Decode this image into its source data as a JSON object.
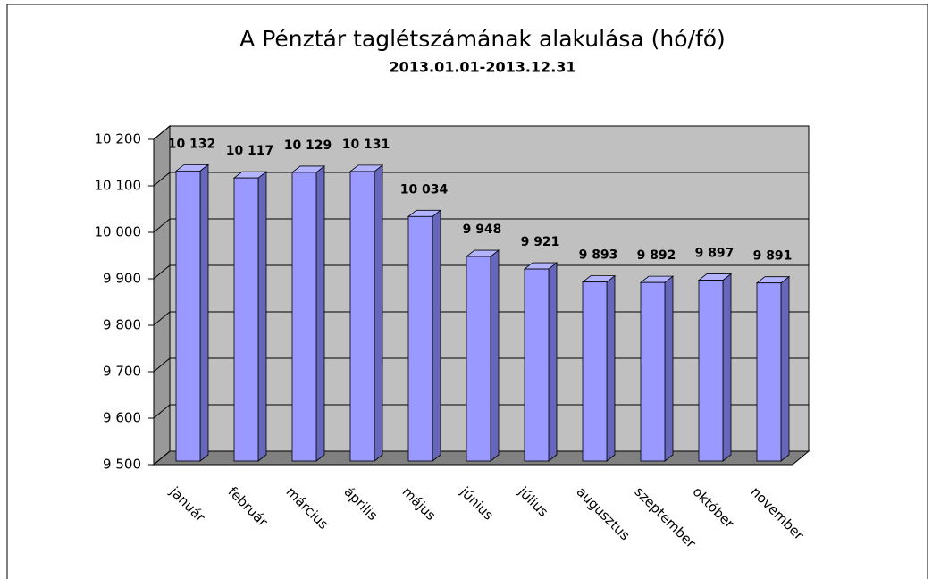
{
  "chart_data": {
    "type": "bar3d",
    "title": "A Pénztár taglétszámának alakulása (hó/fő)",
    "subtitle": "2013.01.01-2013.12.31",
    "categories": [
      "január",
      "február",
      "március",
      "április",
      "május",
      "június",
      "július",
      "augusztus",
      "szeptember",
      "október",
      "november"
    ],
    "values": [
      10132,
      10117,
      10129,
      10131,
      10034,
      9948,
      9921,
      9893,
      9892,
      9897,
      9891
    ],
    "value_labels": [
      "10 132",
      "10 117",
      "10 129",
      "10 131",
      "10 034",
      "9 948",
      "9 921",
      "9 893",
      "9 892",
      "9 897",
      "9 891"
    ],
    "color": "#9999ff",
    "ylim": [
      9500,
      10200
    ],
    "yticks": [
      {
        "value": 9500,
        "label": "9 500"
      },
      {
        "value": 9600,
        "label": "9 600"
      },
      {
        "value": 9700,
        "label": "9 700"
      },
      {
        "value": 9800,
        "label": "9 800"
      },
      {
        "value": 9900,
        "label": "9 900"
      },
      {
        "value": 10000,
        "label": "10 000"
      },
      {
        "value": 10100,
        "label": "10 100"
      },
      {
        "value": 10200,
        "label": "10 200"
      }
    ],
    "grid": true
  }
}
